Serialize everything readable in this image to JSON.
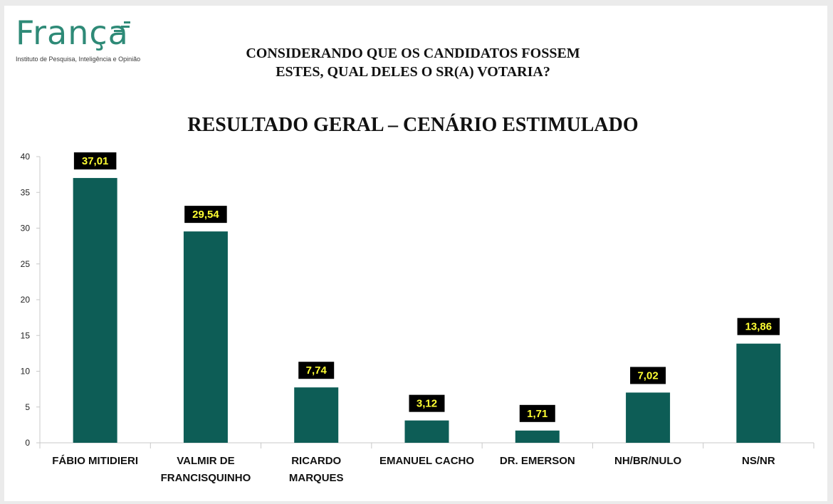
{
  "brand": {
    "name": "França",
    "tagline": "Instituto de Pesquisa, Inteligência e Opinião",
    "color": "#2e8a77"
  },
  "question": {
    "line1": "CONSIDERANDO QUE OS CANDIDATOS FOSSEM",
    "line2": "ESTES, QUAL DELES O SR(A) VOTARIA?"
  },
  "chart_data": {
    "type": "bar",
    "title": "RESULTADO GERAL – CENÁRIO ESTIMULADO",
    "categories": [
      [
        "FÁBIO MITIDIERI"
      ],
      [
        "VALMIR DE",
        "FRANCISQUINHO"
      ],
      [
        "RICARDO",
        "MARQUES"
      ],
      [
        "EMANUEL CACHO"
      ],
      [
        "DR. EMERSON"
      ],
      [
        "NH/BR/NULO"
      ],
      [
        "NS/NR"
      ]
    ],
    "values": [
      37.01,
      29.54,
      7.74,
      3.12,
      1.71,
      7.02,
      13.86
    ],
    "data_labels": [
      "37,01",
      "29,54",
      "7,74",
      "3,12",
      "1,71",
      "7,02",
      "13,86"
    ],
    "ylim": [
      0,
      40
    ],
    "yticks": [
      0,
      5,
      10,
      15,
      20,
      25,
      30,
      35,
      40
    ],
    "grid": false,
    "bar_color": "#0d5d56",
    "label_bg": "#000000",
    "label_color": "#ffff33",
    "xlabel": "",
    "ylabel": ""
  }
}
